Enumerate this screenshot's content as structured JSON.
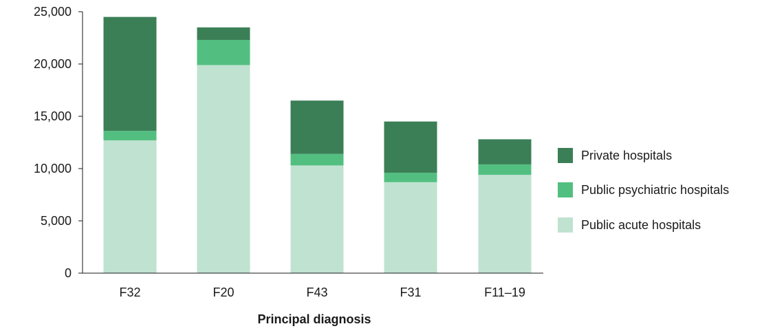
{
  "chart_data": {
    "type": "bar",
    "stacked": true,
    "title": "",
    "xlabel": "Principal diagnosis",
    "ylabel": "",
    "ylim": [
      0,
      25000
    ],
    "yticks": [
      0,
      5000,
      10000,
      15000,
      20000,
      25000
    ],
    "ytick_labels": [
      "0",
      "5,000",
      "10,000",
      "15,000",
      "20,000",
      "25,000"
    ],
    "categories": [
      "F32",
      "F20",
      "F43",
      "F31",
      "F11–19"
    ],
    "series": [
      {
        "name": "Public acute hospitals",
        "color": "#bfe3d0",
        "values": [
          12700,
          19900,
          10300,
          8700,
          9400
        ]
      },
      {
        "name": "Public psychiatric hospitals",
        "color": "#52bf80",
        "values": [
          900,
          2400,
          1100,
          900,
          1000
        ]
      },
      {
        "name": "Private hospitals",
        "color": "#3b7f57",
        "values": [
          10900,
          1200,
          5100,
          4900,
          2400
        ]
      }
    ],
    "legend": {
      "placement": "right",
      "order": [
        "Private hospitals",
        "Public psychiatric hospitals",
        "Public acute hospitals"
      ]
    },
    "grid": false
  }
}
